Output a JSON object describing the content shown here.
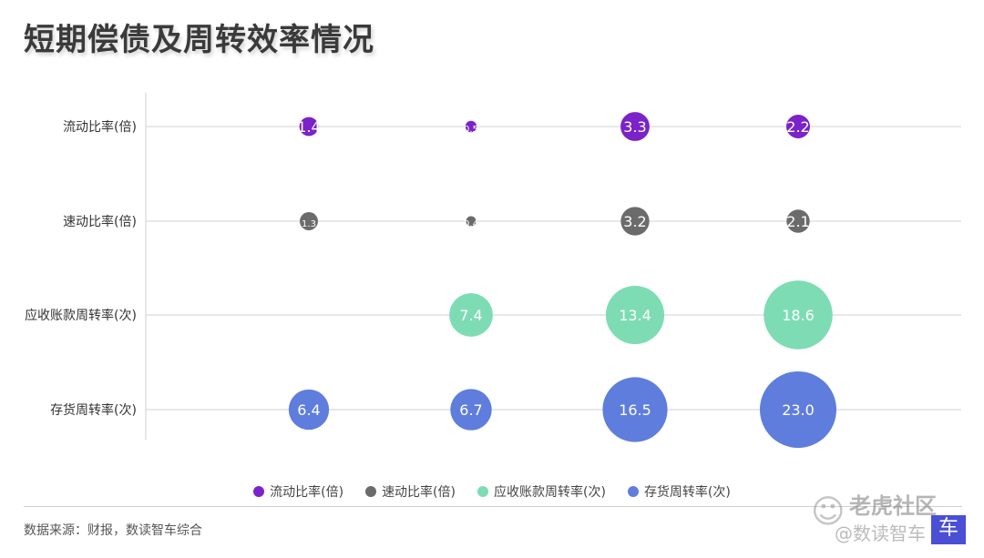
{
  "title": "短期偿债及周转效率情况",
  "source": "数据来源：财报，数读智车综合",
  "watermark": {
    "brand": "老虎社区",
    "handle": "@数读智车",
    "logo_text": "车",
    "icon": "wechat-icon"
  },
  "chart_data": {
    "type": "bubble",
    "title": "短期偿债及周转效率情况",
    "columns_count": 4,
    "rows": [
      "流动比率(倍)",
      "速动比率(倍)",
      "应收账款周转率(次)",
      "存货周转率(次)"
    ],
    "series": [
      {
        "name": "流动比率(倍)",
        "color": "#7b22c9",
        "values": [
          1.4,
          0.5,
          3.3,
          2.2
        ],
        "labels": [
          "1.4",
          "0.5",
          "3.3",
          "2.2"
        ]
      },
      {
        "name": "速动比率(倍)",
        "color": "#6b6b6b",
        "values": [
          1.3,
          0.4,
          3.2,
          2.1
        ],
        "labels": [
          "1.3",
          "0.4",
          "3.2",
          "2.1"
        ]
      },
      {
        "name": "应收账款周转率(次)",
        "color": "#7ddcb4",
        "values": [
          null,
          7.4,
          13.4,
          18.6
        ],
        "labels": [
          "",
          "7.4",
          "13.4",
          "18.6"
        ]
      },
      {
        "name": "存货周转率(次)",
        "color": "#5f7ddc",
        "values": [
          6.4,
          6.7,
          16.5,
          23.0
        ],
        "labels": [
          "6.4",
          "6.7",
          "16.5",
          "23.0"
        ]
      }
    ],
    "legend_position": "bottom-center",
    "grid": true
  }
}
